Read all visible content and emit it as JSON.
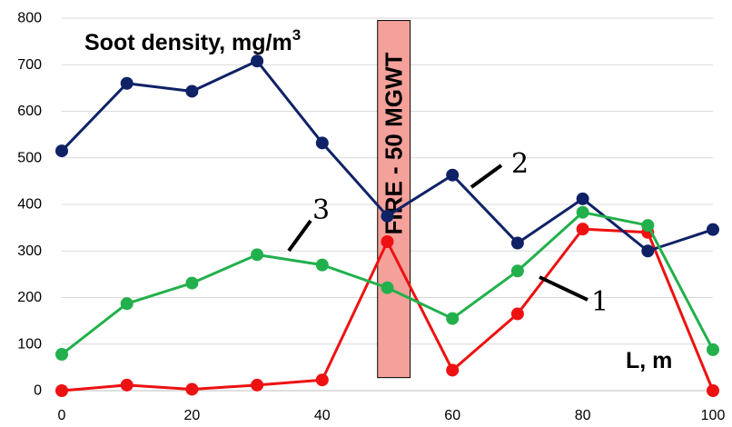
{
  "chart_data": {
    "type": "line",
    "title": "",
    "xlabel": "L, m",
    "ylabel": "",
    "xlim": [
      0,
      100
    ],
    "ylim": [
      0,
      800
    ],
    "x_ticks": [
      "0",
      "20",
      "40",
      "60",
      "80",
      "100"
    ],
    "y_ticks": [
      "0",
      "100",
      "200",
      "300",
      "400",
      "500",
      "600",
      "700",
      "800"
    ],
    "grid": true,
    "legend": "none",
    "x": [
      0,
      10,
      20,
      30,
      40,
      50,
      60,
      70,
      80,
      90,
      100
    ],
    "series": [
      {
        "name": "1",
        "color": "#ee1111",
        "values": [
          0,
          12,
          3,
          12,
          23,
          320,
          44,
          165,
          347,
          340,
          0
        ]
      },
      {
        "name": "2",
        "color": "#0f2266",
        "values": [
          515,
          660,
          643,
          708,
          532,
          375,
          463,
          317,
          412,
          300,
          346
        ]
      },
      {
        "name": "3",
        "color": "#22b04c",
        "values": [
          78,
          187,
          231,
          292,
          270,
          221,
          155,
          257,
          383,
          355,
          88
        ]
      }
    ],
    "annotations": {
      "density_label": "Soot density, mg/m",
      "density_sup": "3",
      "fire_label": "FIRE - 50 MGWT",
      "fire_color": "#f4a19b",
      "fire_range": [
        48.5,
        53.5
      ],
      "fire_top": 795,
      "fire_bottom": 28
    }
  }
}
